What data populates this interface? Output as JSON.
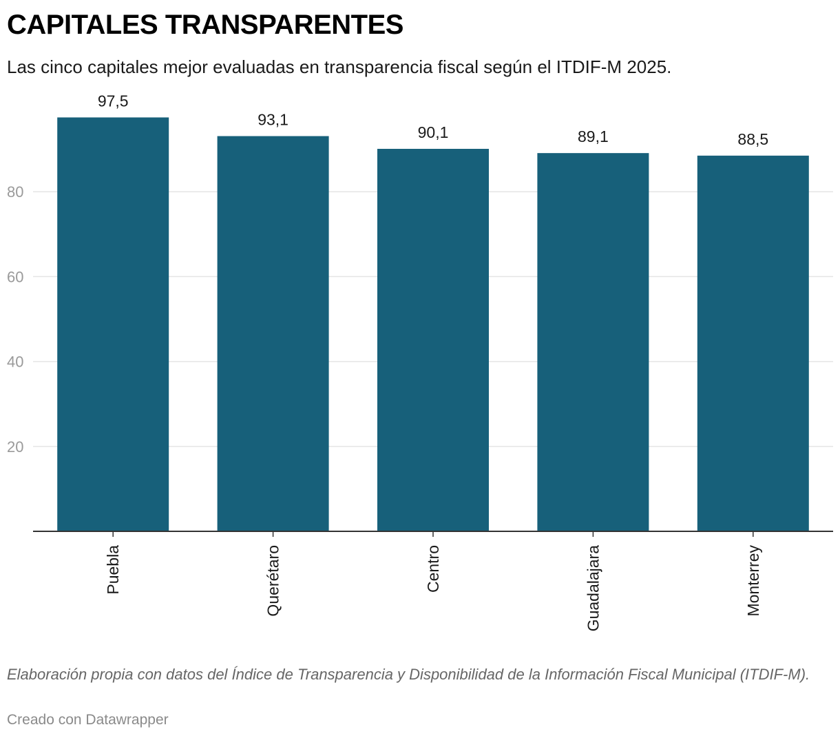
{
  "header": {
    "title": "CAPITALES TRANSPARENTES",
    "subtitle": "Las cinco capitales mejor evaluadas en transparencia fiscal según el ITDIF-M 2025."
  },
  "footer": {
    "notes": "Elaboración propia con datos del Índice de Transparencia y Disponibilidad de la Información Fiscal Municipal (ITDIF-M).",
    "credit": "Creado con Datawrapper"
  },
  "chart_data": {
    "type": "bar",
    "title": "CAPITALES TRANSPARENTES",
    "subtitle": "Las cinco capitales mejor evaluadas en transparencia fiscal según el ITDIF-M 2025.",
    "categories": [
      "Puebla",
      "Querétaro",
      "Centro",
      "Guadalajara",
      "Monterrey"
    ],
    "values": [
      97.5,
      93.1,
      90.1,
      89.1,
      88.5
    ],
    "value_labels": [
      "97,5",
      "93,1",
      "90,1",
      "89,1",
      "88,5"
    ],
    "y_ticks": [
      20,
      40,
      60,
      80
    ],
    "ylim": [
      0,
      100
    ],
    "xlabel": "",
    "ylabel": "",
    "grid": true,
    "bar_color": "#17607a",
    "grid_color": "#e5e5e5",
    "axis_color": "#333333"
  }
}
